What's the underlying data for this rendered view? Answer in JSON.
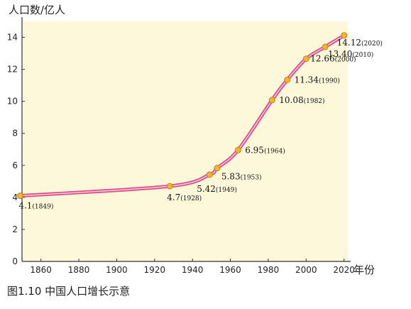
{
  "chart_data": {
    "type": "line",
    "y_unit_label": "人口数/亿人",
    "x_unit_label": "年份",
    "caption": "图1.10 中国人口增长示意",
    "xlim": [
      1850,
      2022
    ],
    "ylim": [
      0,
      15
    ],
    "x_ticks": [
      1860,
      1880,
      1900,
      1920,
      1940,
      1960,
      1980,
      2000,
      2020
    ],
    "y_ticks": [
      0,
      2,
      4,
      6,
      8,
      10,
      12,
      14
    ],
    "grid": false,
    "series": [
      {
        "x": [
          1849,
          1928,
          1949,
          1953,
          1964,
          1982,
          1990,
          2000,
          2010,
          2020
        ],
        "y": [
          4.1,
          4.7,
          5.42,
          5.83,
          6.95,
          10.08,
          11.34,
          12.66,
          13.4,
          14.12
        ]
      }
    ],
    "annotations": [
      {
        "value": "4.1",
        "year": "(1849)"
      },
      {
        "value": "4.7",
        "year": "(1928)"
      },
      {
        "value": "5.42",
        "year": "(1949)"
      },
      {
        "value": "5.83",
        "year": "(1953)"
      },
      {
        "value": "6.95",
        "year": "(1964)"
      },
      {
        "value": "10.08",
        "year": "(1982)"
      },
      {
        "value": "11.34",
        "year": "(1990)"
      },
      {
        "value": "12.66",
        "year": "(2000)"
      },
      {
        "value": "13.40",
        "year": "(2010)"
      },
      {
        "value": "14.12",
        "year": "(2020)"
      }
    ],
    "colors": {
      "plot_background": "#fdf8d9",
      "line": "#d9508a",
      "point_fill": "#f6b42a",
      "point_stroke": "#c9801a",
      "axis": "#333333"
    }
  }
}
